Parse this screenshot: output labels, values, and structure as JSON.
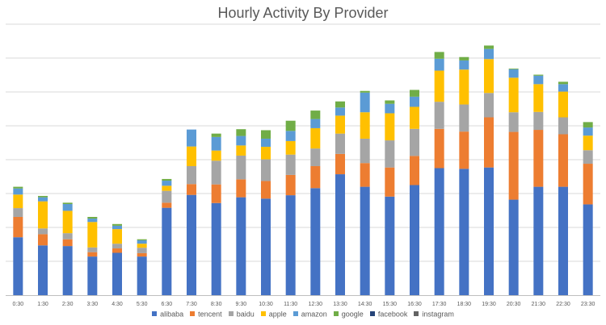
{
  "chart_data": {
    "type": "bar",
    "stacked": true,
    "title": "Hourly Activity By Provider",
    "xlabel": "",
    "ylabel": "",
    "ylim": [
      0,
      800
    ],
    "grid_step": 100,
    "grid": true,
    "legend_position": "bottom",
    "categories": [
      "0:30",
      "1:30",
      "2:30",
      "3:30",
      "4:30",
      "5:30",
      "6:30",
      "7:30",
      "8:30",
      "9:30",
      "10:30",
      "11:30",
      "12:30",
      "13:30",
      "14:30",
      "15:30",
      "16:30",
      "17:30",
      "18:30",
      "19:30",
      "20:30",
      "21:30",
      "22:30",
      "23:30"
    ],
    "series": [
      {
        "name": "alibaba",
        "color": "#4472C4",
        "values": [
          171,
          147,
          145,
          114,
          125,
          114,
          258,
          296,
          272,
          289,
          285,
          295,
          316,
          357,
          320,
          291,
          325,
          375,
          373,
          377,
          282,
          320,
          320,
          268
        ]
      },
      {
        "name": "tencent",
        "color": "#ED7D31",
        "values": [
          60,
          33,
          20,
          13,
          13,
          10,
          15,
          32,
          55,
          53,
          52,
          60,
          65,
          60,
          70,
          86,
          86,
          116,
          110,
          148,
          200,
          168,
          155,
          120
        ]
      },
      {
        "name": "baidu",
        "color": "#A5A5A5",
        "values": [
          26,
          17,
          18,
          14,
          14,
          16,
          35,
          53,
          70,
          70,
          64,
          60,
          52,
          60,
          72,
          80,
          80,
          80,
          80,
          72,
          58,
          53,
          50,
          40
        ]
      },
      {
        "name": "apple",
        "color": "#FFC000",
        "values": [
          40,
          80,
          66,
          75,
          43,
          12,
          15,
          58,
          30,
          30,
          37,
          40,
          60,
          53,
          78,
          80,
          65,
          92,
          103,
          100,
          102,
          82,
          76,
          43
        ]
      },
      {
        "name": "amazon",
        "color": "#5B9BD5",
        "values": [
          18,
          12,
          20,
          10,
          10,
          10,
          15,
          50,
          40,
          28,
          24,
          30,
          27,
          24,
          58,
          28,
          30,
          35,
          27,
          30,
          25,
          25,
          22,
          24
        ]
      },
      {
        "name": "google",
        "color": "#70AD47",
        "values": [
          5,
          4,
          4,
          5,
          5,
          3,
          5,
          0,
          10,
          20,
          25,
          30,
          25,
          18,
          5,
          10,
          20,
          20,
          10,
          10,
          2,
          3,
          7,
          16
        ]
      },
      {
        "name": "facebook",
        "color": "#264478",
        "values": [
          0,
          0,
          0,
          0,
          0,
          0,
          0,
          0,
          0,
          0,
          0,
          0,
          0,
          0,
          0,
          0,
          0,
          0,
          0,
          0,
          0,
          0,
          0,
          0
        ]
      },
      {
        "name": "instagram",
        "color": "#636363",
        "values": [
          0,
          0,
          0,
          0,
          0,
          0,
          0,
          0,
          0,
          0,
          0,
          0,
          0,
          0,
          0,
          0,
          0,
          0,
          0,
          0,
          0,
          0,
          0,
          0
        ]
      }
    ]
  }
}
